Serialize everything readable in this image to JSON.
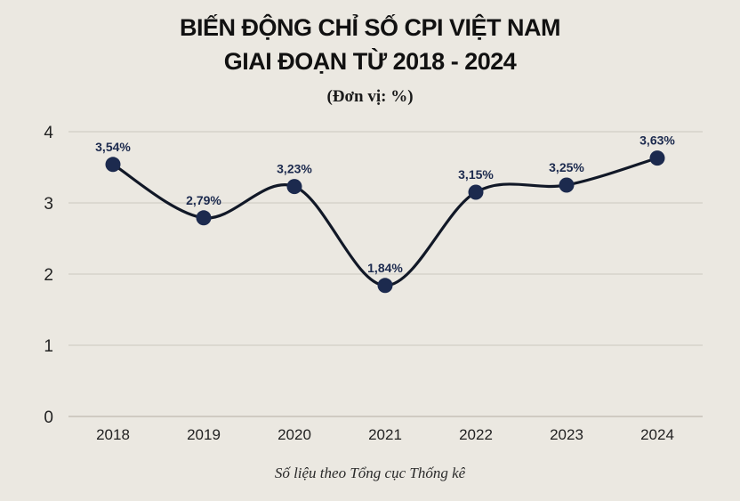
{
  "header": {
    "title_line1": "BIẾN ĐỘNG CHỈ SỐ CPI VIỆT NAM",
    "title_line2": "GIAI ĐOẠN TỪ 2018 - 2024",
    "unit": "(Đơn vị: %)"
  },
  "footer": {
    "source": "Số liệu theo Tổng cục Thống kê"
  },
  "colors": {
    "background": "#ebe8e1",
    "line": "#111827",
    "marker": "#1c2a4e",
    "label": "#1c2a4e",
    "grid": "#d6d2ca"
  },
  "chart_data": {
    "type": "line",
    "title": "BIẾN ĐỘNG CHỈ SỐ CPI VIỆT NAM GIAI ĐOẠN TỪ 2018 - 2024",
    "subtitle": "(Đơn vị: %)",
    "xlabel": "",
    "ylabel": "",
    "categories": [
      "2018",
      "2019",
      "2020",
      "2021",
      "2022",
      "2023",
      "2024"
    ],
    "series": [
      {
        "name": "CPI",
        "values": [
          3.54,
          2.79,
          3.23,
          1.84,
          3.15,
          3.25,
          3.63
        ],
        "labels": [
          "3,54%",
          "2,79%",
          "3,23%",
          "1,84%",
          "3,15%",
          "3,25%",
          "3,63%"
        ]
      }
    ],
    "ylim": [
      0,
      4
    ],
    "yticks": [
      0,
      1,
      2,
      3,
      4
    ],
    "grid": true,
    "smooth": true,
    "legend": "none",
    "annotation": "Số liệu theo Tổng cục Thống kê"
  }
}
